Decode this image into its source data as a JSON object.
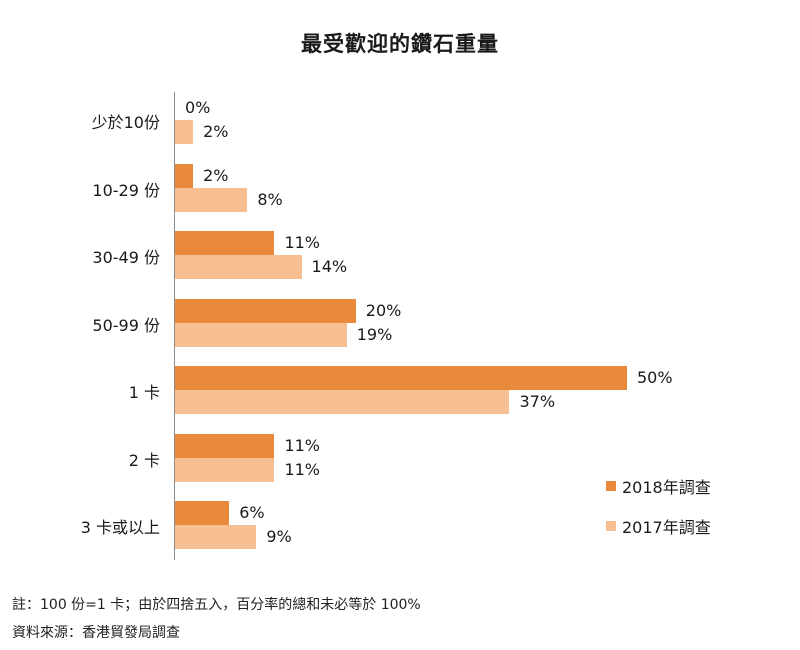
{
  "chart_data": {
    "type": "bar",
    "orientation": "horizontal",
    "title": "最受歡迎的鑽石重量",
    "xlabel": "",
    "ylabel": "",
    "categories": [
      "少於10份",
      "10-29 份",
      "30-49 份",
      "50-99 份",
      "1 卡",
      "2 卡",
      "3 卡或以上"
    ],
    "series": [
      {
        "name": "2018年調查",
        "color": "#e8893c",
        "values": [
          0,
          2,
          11,
          20,
          50,
          11,
          6
        ]
      },
      {
        "name": "2017年調查",
        "color": "#f8bf93",
        "values": [
          2,
          8,
          14,
          19,
          37,
          11,
          9
        ]
      }
    ],
    "value_labels": {
      "2018": [
        "0%",
        "2%",
        "11%",
        "20%",
        "50%",
        "11%",
        "6%"
      ],
      "2017": [
        "2%",
        "8%",
        "14%",
        "19%",
        "37%",
        "11%",
        "9%"
      ]
    },
    "unit": "%",
    "grid": false,
    "legend_position": "right-bottom"
  },
  "legend": {
    "s2018": "2018年調查",
    "s2017": "2017年調查"
  },
  "notes": {
    "note": "註：100 份=1 卡；由於四捨五入，百分率的總和未必等於 100%",
    "source": "資料來源：香港貿發局調查"
  }
}
